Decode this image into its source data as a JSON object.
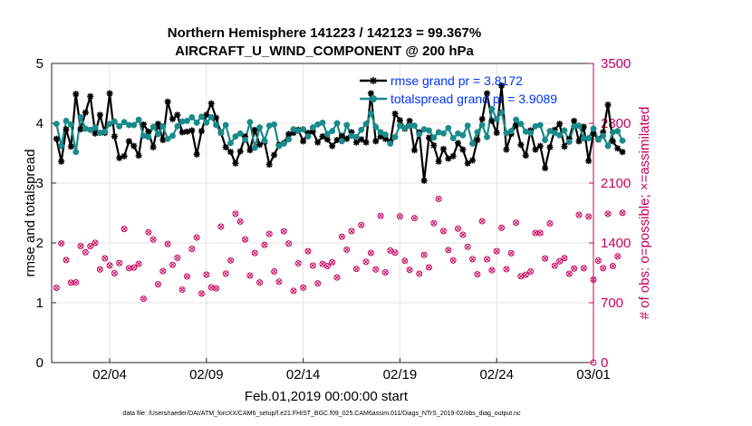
{
  "chart_data": {
    "type": "line",
    "title_lines": [
      "Northern Hemisphere 141223 / 142123 = 99.367%",
      "AIRCRAFT_U_WIND_COMPONENT @ 200 hPa"
    ],
    "xlabel": "Feb.01,2019 00:00:00 start",
    "ylabel_left": "rmse and totalspread",
    "ylabel_right": "# of obs: o=possible; ×=assimilated",
    "xlim": [
      0,
      28
    ],
    "ylim_left": [
      0,
      5
    ],
    "ylim_right": [
      0,
      3500
    ],
    "x_ticks": [
      {
        "v": 3,
        "label": "02/04"
      },
      {
        "v": 8,
        "label": "02/09"
      },
      {
        "v": 13,
        "label": "02/14"
      },
      {
        "v": 18,
        "label": "02/19"
      },
      {
        "v": 23,
        "label": "02/24"
      },
      {
        "v": 28,
        "label": "03/01"
      }
    ],
    "y_ticks_left": [
      {
        "v": 0,
        "label": "0"
      },
      {
        "v": 1,
        "label": "1"
      },
      {
        "v": 2,
        "label": "2"
      },
      {
        "v": 3,
        "label": "3"
      },
      {
        "v": 4,
        "label": "4"
      },
      {
        "v": 5,
        "label": "5"
      }
    ],
    "y_ticks_right": [
      {
        "v": 0,
        "label": "0"
      },
      {
        "v": 700,
        "label": "700"
      },
      {
        "v": 1400,
        "label": "1400"
      },
      {
        "v": 2100,
        "label": "2100"
      },
      {
        "v": 2800,
        "label": "2800"
      },
      {
        "v": 3500,
        "label": "3500"
      }
    ],
    "x_step": 0.25,
    "grid": true,
    "legend_position": "top-right",
    "series": [
      {
        "name": "rmse grand pr = 3.8172",
        "axis": "left",
        "color": "#000000",
        "marker": "asterisk",
        "values": [
          3.74,
          3.36,
          3.9,
          3.61,
          4.49,
          3.9,
          4.18,
          4.45,
          3.83,
          4.14,
          3.84,
          4.5,
          3.78,
          3.42,
          3.45,
          3.7,
          3.62,
          3.46,
          3.98,
          3.86,
          3.6,
          3.99,
          3.72,
          4.36,
          4.07,
          4.14,
          3.85,
          3.86,
          3.88,
          3.48,
          3.87,
          4.14,
          4.33,
          4.09,
          3.84,
          3.6,
          3.52,
          3.33,
          3.53,
          3.78,
          3.55,
          3.89,
          3.64,
          3.69,
          3.31,
          3.47,
          3.64,
          3.67,
          3.82,
          3.84,
          3.89,
          3.7,
          3.84,
          3.86,
          3.68,
          3.78,
          3.73,
          3.62,
          3.72,
          3.79,
          3.74,
          3.85,
          3.68,
          3.73,
          3.68,
          4.5,
          3.7,
          3.78,
          3.74,
          3.69,
          4.16,
          4.05,
          3.91,
          4.04,
          3.55,
          3.85,
          3.04,
          3.76,
          3.63,
          3.36,
          3.57,
          3.41,
          3.45,
          3.67,
          3.56,
          3.33,
          3.38,
          3.72,
          4.07,
          4.5,
          4.04,
          3.84,
          4.63,
          3.56,
          3.82,
          3.97,
          3.64,
          3.46,
          3.88,
          3.56,
          3.62,
          3.25,
          3.6,
          3.89,
          3.99,
          3.61,
          3.74,
          4.04,
          3.7,
          3.94,
          3.37,
          3.83,
          3.73,
          3.85,
          4.31,
          3.7,
          3.58,
          3.52
        ]
      },
      {
        "name": "totalspread grand pr = 3.9089",
        "axis": "left",
        "color": "#1a8a8a",
        "marker": "circle",
        "values": [
          3.99,
          3.62,
          4.04,
          3.98,
          3.52,
          4.1,
          3.91,
          3.89,
          3.93,
          3.84,
          3.86,
          3.99,
          4.03,
          3.95,
          4.02,
          3.97,
          3.97,
          4.06,
          3.79,
          3.77,
          3.94,
          3.82,
          3.95,
          3.74,
          3.79,
          3.95,
          4.03,
          4.04,
          4.1,
          4.01,
          4.11,
          4.01,
          4.1,
          3.97,
          3.84,
          3.97,
          3.67,
          3.78,
          3.83,
          3.72,
          4.02,
          3.59,
          3.93,
          3.71,
          3.96,
          3.98,
          3.62,
          3.66,
          3.73,
          3.9,
          3.87,
          3.9,
          3.78,
          3.93,
          3.98,
          4.01,
          3.82,
          3.87,
          4.0,
          3.7,
          3.97,
          3.79,
          3.77,
          3.89,
          3.99,
          4.16,
          3.94,
          3.85,
          3.81,
          3.66,
          3.77,
          3.96,
          3.92,
          3.96,
          3.96,
          3.82,
          3.9,
          3.88,
          3.76,
          3.85,
          3.83,
          3.92,
          3.75,
          3.83,
          3.8,
          3.96,
          3.66,
          3.85,
          3.97,
          3.77,
          4.24,
          4.07,
          4.18,
          3.84,
          3.87,
          4.06,
          3.99,
          3.86,
          3.84,
          3.95,
          3.97,
          3.72,
          3.87,
          3.84,
          3.8,
          3.88,
          3.69,
          3.95,
          3.96,
          3.75,
          3.75,
          3.91,
          3.73,
          3.79,
          3.62,
          3.85,
          3.87,
          3.71
        ]
      },
      {
        "name": "# of obs possible/assimilated",
        "axis": "right",
        "color": "#c8005a",
        "marker": "circle-times",
        "values": [
          875,
          1394,
          1200,
          935,
          938,
          1362,
          1290,
          1361,
          1401,
          1090,
          1220,
          1136,
          1045,
          1165,
          1563,
          1105,
          1111,
          1154,
          747,
          1524,
          1440,
          916,
          1070,
          1387,
          1143,
          1226,
          853,
          1007,
          1331,
          1463,
          807,
          1029,
          879,
          868,
          1591,
          1041,
          1195,
          1741,
          1650,
          1441,
          1018,
          1282,
          937,
          1377,
          1506,
          1066,
          946,
          1536,
          1392,
          839,
          1162,
          877,
          1303,
          1135,
          927,
          1154,
          1129,
          1173,
          996,
          1472,
          1321,
          1539,
          1096,
          1609,
          1180,
          1283,
          1090,
          1716,
          1055,
          1311,
          1286,
          1711,
          1190,
          1085,
          1691,
          1040,
          1260,
          1114,
          1631,
          1915,
          1539,
          1317,
          1195,
          1567,
          1496,
          1355,
          1210,
          1033,
          1654,
          1209,
          1081,
          1303,
          1577,
          1093,
          1279,
          1637,
          1010,
          1027,
          1066,
          1516,
          1517,
          1218,
          1628,
          1133,
          1185,
          1222,
          1039,
          1100,
          1729,
          1104,
          1708,
          970,
          1193,
          1104,
          1740,
          1129,
          1243,
          1751
        ]
      }
    ],
    "footnote": "data file: /Users/raeder/DAI/ATM_forcXX/CAM6_setup/f.e21.FHIST_BGC.f09_025.CAM6assim.011/Diags_NTrS_2019-02/obs_diag_output.nc"
  }
}
